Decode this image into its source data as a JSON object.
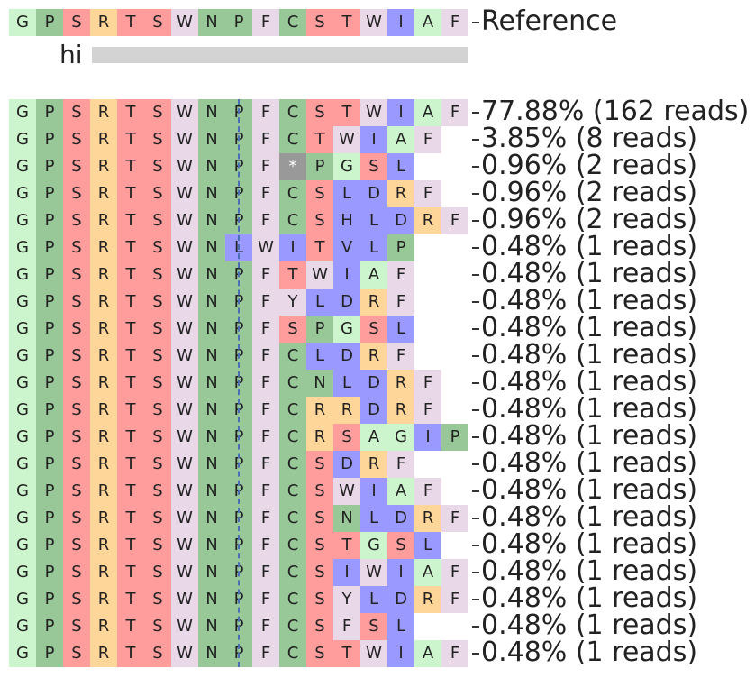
{
  "chart_data": {
    "type": "table",
    "title": "",
    "amino_acid_colors": {
      "G": "#cdf5cd",
      "P": "#98c898",
      "S": "#ff9d9d",
      "R": "#ffd699",
      "T": "#ff9d9d",
      "W": "#e8d8e8",
      "N": "#98c898",
      "F": "#e8d8e8",
      "C": "#98c898",
      "I": "#9999ff",
      "A": "#cdf5cd",
      "L": "#9999ff",
      "*": "#999999",
      "Y": "#e8d8e8",
      "V": "#9999ff",
      "H": "#9999ff",
      "D": "#9999ff"
    },
    "reference": {
      "sequence": [
        "G",
        "P",
        "S",
        "R",
        "T",
        "S",
        "W",
        "N",
        "P",
        "F",
        "C",
        "S",
        "T",
        "W",
        "I",
        "A",
        "F"
      ],
      "label": "Reference"
    },
    "sample": {
      "name": "hi",
      "bar_fraction": 1.0
    },
    "alleles": [
      {
        "sequence": [
          "G",
          "P",
          "S",
          "R",
          "T",
          "S",
          "W",
          "N",
          "P",
          "F",
          "C",
          "S",
          "T",
          "W",
          "I",
          "A",
          "F"
        ],
        "label": "77.88% (162 reads)",
        "percent": 77.88,
        "reads": 162
      },
      {
        "sequence": [
          "G",
          "P",
          "S",
          "R",
          "T",
          "S",
          "W",
          "N",
          "P",
          "F",
          "C",
          "T",
          "W",
          "I",
          "A",
          "F"
        ],
        "label": "3.85% (8 reads)",
        "percent": 3.85,
        "reads": 8
      },
      {
        "sequence": [
          "G",
          "P",
          "S",
          "R",
          "T",
          "S",
          "W",
          "N",
          "P",
          "F",
          "*",
          "P",
          "G",
          "S",
          "L"
        ],
        "label": "0.96% (2 reads)",
        "percent": 0.96,
        "reads": 2
      },
      {
        "sequence": [
          "G",
          "P",
          "S",
          "R",
          "T",
          "S",
          "W",
          "N",
          "P",
          "F",
          "C",
          "S",
          "L",
          "D",
          "R",
          "F"
        ],
        "label": "0.96% (2 reads)",
        "percent": 0.96,
        "reads": 2
      },
      {
        "sequence": [
          "G",
          "P",
          "S",
          "R",
          "T",
          "S",
          "W",
          "N",
          "P",
          "F",
          "C",
          "S",
          "H",
          "L",
          "D",
          "R",
          "F"
        ],
        "label": "0.96% (2 reads)",
        "percent": 0.96,
        "reads": 2
      },
      {
        "sequence": [
          "G",
          "P",
          "S",
          "R",
          "T",
          "S",
          "W",
          "N",
          "L",
          "W",
          "I",
          "T",
          "V",
          "L",
          "P"
        ],
        "label": "0.48% (1 reads)",
        "percent": 0.48,
        "reads": 1
      },
      {
        "sequence": [
          "G",
          "P",
          "S",
          "R",
          "T",
          "S",
          "W",
          "N",
          "P",
          "F",
          "T",
          "W",
          "I",
          "A",
          "F"
        ],
        "label": "0.48% (1 reads)",
        "percent": 0.48,
        "reads": 1
      },
      {
        "sequence": [
          "G",
          "P",
          "S",
          "R",
          "T",
          "S",
          "W",
          "N",
          "P",
          "F",
          "Y",
          "L",
          "D",
          "R",
          "F"
        ],
        "label": "0.48% (1 reads)",
        "percent": 0.48,
        "reads": 1
      },
      {
        "sequence": [
          "G",
          "P",
          "S",
          "R",
          "T",
          "S",
          "W",
          "N",
          "P",
          "F",
          "S",
          "P",
          "G",
          "S",
          "L"
        ],
        "label": "0.48% (1 reads)",
        "percent": 0.48,
        "reads": 1
      },
      {
        "sequence": [
          "G",
          "P",
          "S",
          "R",
          "T",
          "S",
          "W",
          "N",
          "P",
          "F",
          "C",
          "L",
          "D",
          "R",
          "F"
        ],
        "label": "0.48% (1 reads)",
        "percent": 0.48,
        "reads": 1
      },
      {
        "sequence": [
          "G",
          "P",
          "S",
          "R",
          "T",
          "S",
          "W",
          "N",
          "P",
          "F",
          "C",
          "N",
          "L",
          "D",
          "R",
          "F"
        ],
        "label": "0.48% (1 reads)",
        "percent": 0.48,
        "reads": 1
      },
      {
        "sequence": [
          "G",
          "P",
          "S",
          "R",
          "T",
          "S",
          "W",
          "N",
          "P",
          "F",
          "C",
          "R",
          "R",
          "D",
          "R",
          "F"
        ],
        "label": "0.48% (1 reads)",
        "percent": 0.48,
        "reads": 1
      },
      {
        "sequence": [
          "G",
          "P",
          "S",
          "R",
          "T",
          "S",
          "W",
          "N",
          "P",
          "F",
          "C",
          "R",
          "S",
          "A",
          "G",
          "I",
          "P"
        ],
        "label": "0.48% (1 reads)",
        "percent": 0.48,
        "reads": 1
      },
      {
        "sequence": [
          "G",
          "P",
          "S",
          "R",
          "T",
          "S",
          "W",
          "N",
          "P",
          "F",
          "C",
          "S",
          "D",
          "R",
          "F"
        ],
        "label": "0.48% (1 reads)",
        "percent": 0.48,
        "reads": 1
      },
      {
        "sequence": [
          "G",
          "P",
          "S",
          "R",
          "T",
          "S",
          "W",
          "N",
          "P",
          "F",
          "C",
          "S",
          "W",
          "I",
          "A",
          "F"
        ],
        "label": "0.48% (1 reads)",
        "percent": 0.48,
        "reads": 1
      },
      {
        "sequence": [
          "G",
          "P",
          "S",
          "R",
          "T",
          "S",
          "W",
          "N",
          "P",
          "F",
          "C",
          "S",
          "N",
          "L",
          "D",
          "R",
          "F"
        ],
        "label": "0.48% (1 reads)",
        "percent": 0.48,
        "reads": 1
      },
      {
        "sequence": [
          "G",
          "P",
          "S",
          "R",
          "T",
          "S",
          "W",
          "N",
          "P",
          "F",
          "C",
          "S",
          "T",
          "G",
          "S",
          "L"
        ],
        "label": "0.48% (1 reads)",
        "percent": 0.48,
        "reads": 1
      },
      {
        "sequence": [
          "G",
          "P",
          "S",
          "R",
          "T",
          "S",
          "W",
          "N",
          "P",
          "F",
          "C",
          "S",
          "I",
          "W",
          "I",
          "A",
          "F"
        ],
        "label": "0.48% (1 reads)",
        "percent": 0.48,
        "reads": 1
      },
      {
        "sequence": [
          "G",
          "P",
          "S",
          "R",
          "T",
          "S",
          "W",
          "N",
          "P",
          "F",
          "C",
          "S",
          "Y",
          "L",
          "D",
          "R",
          "F"
        ],
        "label": "0.48% (1 reads)",
        "percent": 0.48,
        "reads": 1
      },
      {
        "sequence": [
          "G",
          "P",
          "S",
          "R",
          "T",
          "S",
          "W",
          "N",
          "P",
          "F",
          "C",
          "S",
          "F",
          "S",
          "L"
        ],
        "label": "0.48% (1 reads)",
        "percent": 0.48,
        "reads": 1
      },
      {
        "sequence": [
          "G",
          "P",
          "S",
          "R",
          "T",
          "S",
          "W",
          "N",
          "P",
          "F",
          "C",
          "S",
          "T",
          "W",
          "I",
          "A",
          "F"
        ],
        "label": "0.48% (1 reads)",
        "percent": 0.48,
        "reads": 1
      }
    ]
  }
}
